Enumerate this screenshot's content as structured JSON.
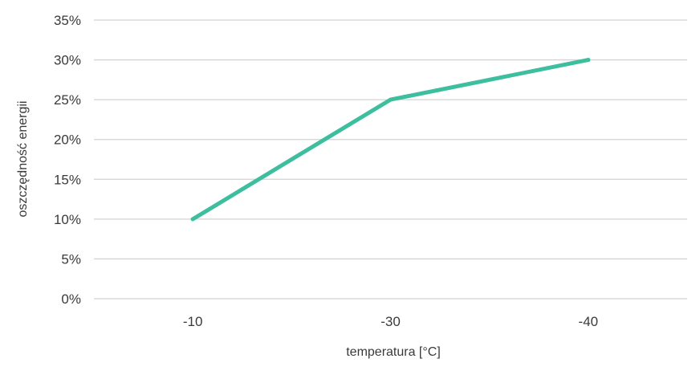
{
  "chart_data": {
    "type": "line",
    "title": "",
    "xlabel": "temperatura [°C]",
    "ylabel": "oszczędność energii",
    "categories": [
      "-10",
      "-30",
      "-40"
    ],
    "series": [
      {
        "values": [
          10,
          25,
          30
        ],
        "color": "#3dbf9f"
      }
    ],
    "y_tick_labels": [
      "0%",
      "5%",
      "10%",
      "15%",
      "20%",
      "25%",
      "30%",
      "35%"
    ],
    "ylim": [
      0,
      35
    ],
    "y_step": 5,
    "grid": true,
    "legend": "none"
  }
}
